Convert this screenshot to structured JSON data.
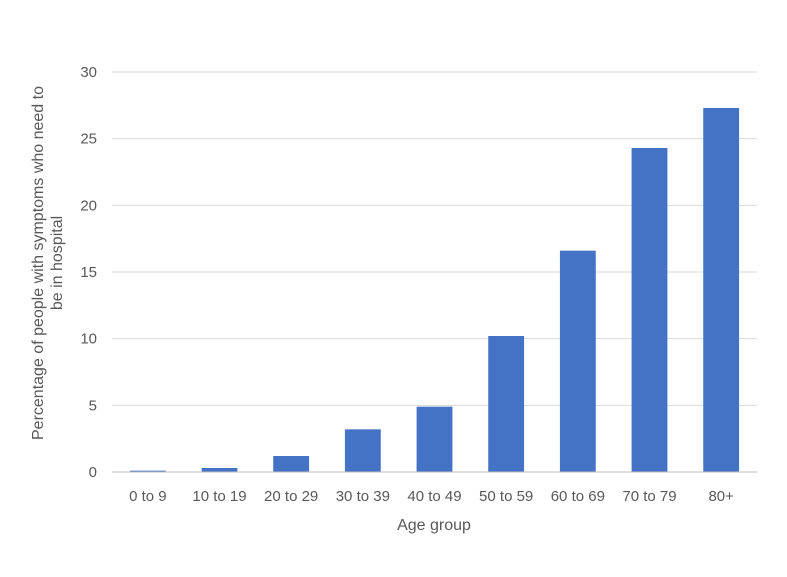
{
  "chart_data": {
    "type": "bar",
    "title": "",
    "xlabel": "Age group",
    "ylabel_lines": [
      "Percentage of people with symptoms who need to",
      "be in hospital"
    ],
    "categories": [
      "0 to 9",
      "10 to 19",
      "20 to 29",
      "30 to 39",
      "40 to 49",
      "50 to 59",
      "60 to 69",
      "70 to 79",
      "80+"
    ],
    "values": [
      0.1,
      0.3,
      1.2,
      3.2,
      4.9,
      10.2,
      16.6,
      24.3,
      27.3
    ],
    "ylim": [
      0,
      30
    ],
    "yticks": [
      "0",
      "5",
      "10",
      "15",
      "20",
      "25",
      "30"
    ],
    "grid": true,
    "legend": "none",
    "colors": {
      "bar": "#4472c4",
      "grid": "#d9d9d9",
      "axis": "#bfbfbf",
      "text": "#595959"
    }
  }
}
